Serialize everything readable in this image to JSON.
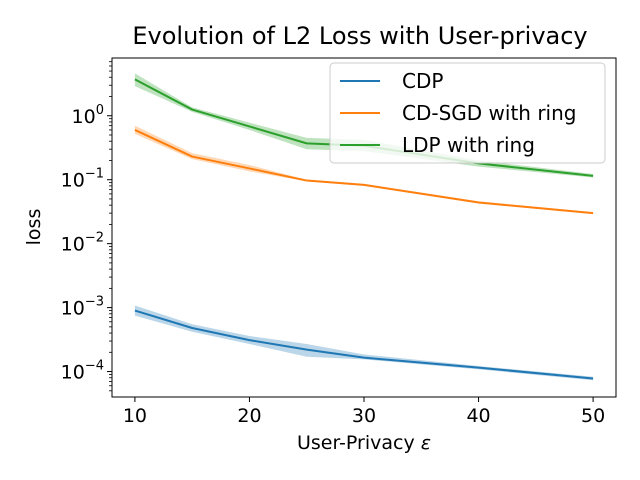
{
  "chart_data": {
    "type": "line",
    "title": "Evolution of L2 Loss with User-privacy",
    "xlabel": "User-Privacy",
    "xlabel_symbol": "ε",
    "ylabel": "loss",
    "yscale": "log",
    "xlim": [
      8,
      52
    ],
    "ylim": [
      4e-05,
      8
    ],
    "xticks": [
      10,
      20,
      30,
      40,
      50
    ],
    "xtick_labels": [
      "10",
      "20",
      "30",
      "40",
      "50"
    ],
    "yticks": [
      0.0001,
      0.001,
      0.01,
      0.1,
      1
    ],
    "ytick_labels": [
      {
        "base": "10",
        "exp": "−4"
      },
      {
        "base": "10",
        "exp": "−3"
      },
      {
        "base": "10",
        "exp": "−2"
      },
      {
        "base": "10",
        "exp": "−1"
      },
      {
        "base": "10",
        "exp": "0"
      }
    ],
    "grid": false,
    "legend_position": "top-right",
    "x": [
      10,
      15,
      20,
      25,
      30,
      40,
      50
    ],
    "series": [
      {
        "name": "CDP",
        "color": "#1f77b4",
        "values": [
          0.0009,
          0.00048,
          0.00031,
          0.00022,
          0.000165,
          0.000115,
          7.8e-05
        ],
        "band_low": [
          0.00075,
          0.00042,
          0.00027,
          0.00017,
          0.000155,
          0.000108,
          7.3e-05
        ],
        "band_high": [
          0.00108,
          0.00055,
          0.00036,
          0.00027,
          0.000185,
          0.000122,
          8.3e-05
        ]
      },
      {
        "name": "CD-SGD with ring",
        "color": "#ff7f0e",
        "values": [
          0.6,
          0.23,
          0.15,
          0.097,
          0.083,
          0.044,
          0.03
        ],
        "band_low": [
          0.52,
          0.21,
          0.135,
          0.094,
          0.08,
          0.043,
          0.029
        ],
        "band_high": [
          0.7,
          0.26,
          0.17,
          0.1,
          0.086,
          0.046,
          0.031
        ]
      },
      {
        "name": "LDP with ring",
        "color": "#2ca02c",
        "values": [
          3.7,
          1.25,
          0.68,
          0.37,
          0.34,
          0.18,
          0.115
        ],
        "band_low": [
          2.9,
          1.15,
          0.6,
          0.3,
          0.28,
          0.16,
          0.108
        ],
        "band_high": [
          4.6,
          1.35,
          0.78,
          0.45,
          0.42,
          0.2,
          0.123
        ]
      }
    ]
  }
}
